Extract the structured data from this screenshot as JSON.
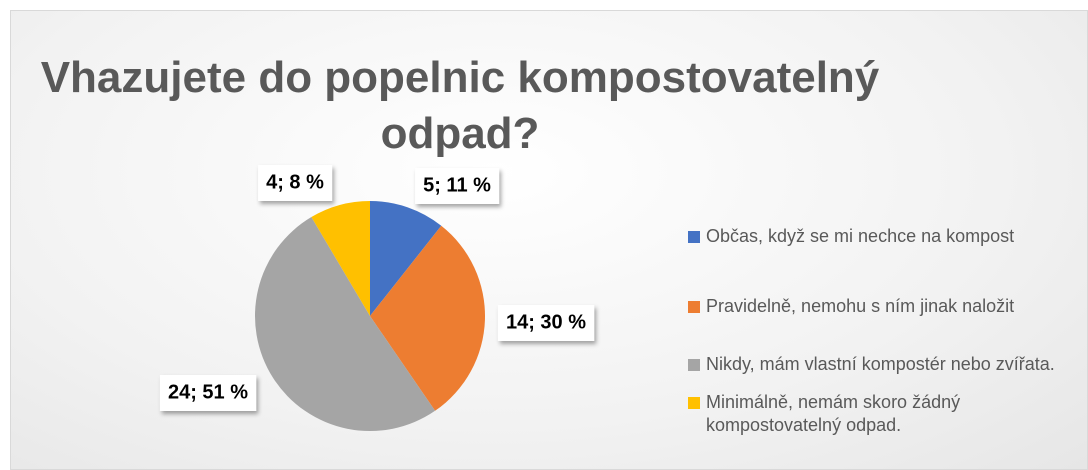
{
  "chart_data": {
    "type": "pie",
    "title": "Vhazujete do popelnic kompostovatelný odpad?",
    "categories": [
      "Občas, když se mi nechce na kompost",
      "Pravidelně, nemohu s ním jinak naložit",
      "Nikdy, mám vlastní kompostér nebo zvířata.",
      "Minimálně, nemám skoro žádný kompostovatelný odpad."
    ],
    "values": [
      5,
      14,
      24,
      4
    ],
    "value_labels": [
      "5; 11 %",
      "14; 30 %",
      "24; 51 %",
      "4; 8 %"
    ],
    "colors": [
      "#4472c4",
      "#ed7d31",
      "#a5a5a5",
      "#ffc000"
    ],
    "legend": "right"
  }
}
